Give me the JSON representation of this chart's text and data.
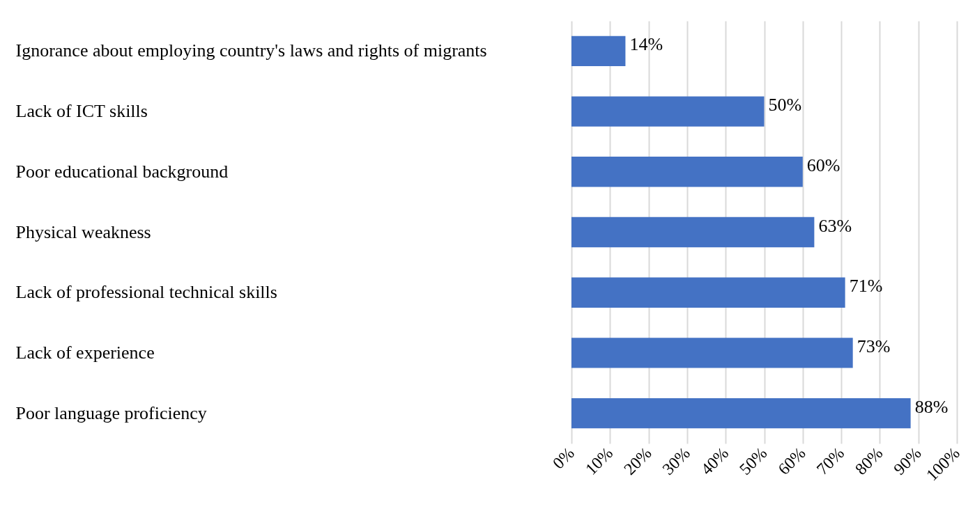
{
  "chart_data": {
    "type": "bar",
    "orientation": "horizontal",
    "categories": [
      "Ignorance about employing country's laws and rights of migrants",
      "Lack of ICT skills",
      "Poor educational background",
      "Physical weakness",
      "Lack of professional technical skills",
      "Lack of experience",
      "Poor language proficiency"
    ],
    "values": [
      14,
      50,
      60,
      63,
      71,
      73,
      88
    ],
    "value_labels": [
      "14%",
      "50%",
      "60%",
      "63%",
      "71%",
      "73%",
      "88%"
    ],
    "color": "#4472c4",
    "xlim": [
      0,
      100
    ],
    "xticks": [
      {
        "value": 0,
        "label": "0%"
      },
      {
        "value": 10,
        "label": "10%"
      },
      {
        "value": 20,
        "label": "20%"
      },
      {
        "value": 30,
        "label": "30%"
      },
      {
        "value": 40,
        "label": "40%"
      },
      {
        "value": 50,
        "label": "50%"
      },
      {
        "value": 60,
        "label": "60%"
      },
      {
        "value": 70,
        "label": "70%"
      },
      {
        "value": 80,
        "label": "80%"
      },
      {
        "value": 90,
        "label": "90%"
      },
      {
        "value": 100,
        "label": "100%"
      }
    ],
    "grid": "x"
  }
}
